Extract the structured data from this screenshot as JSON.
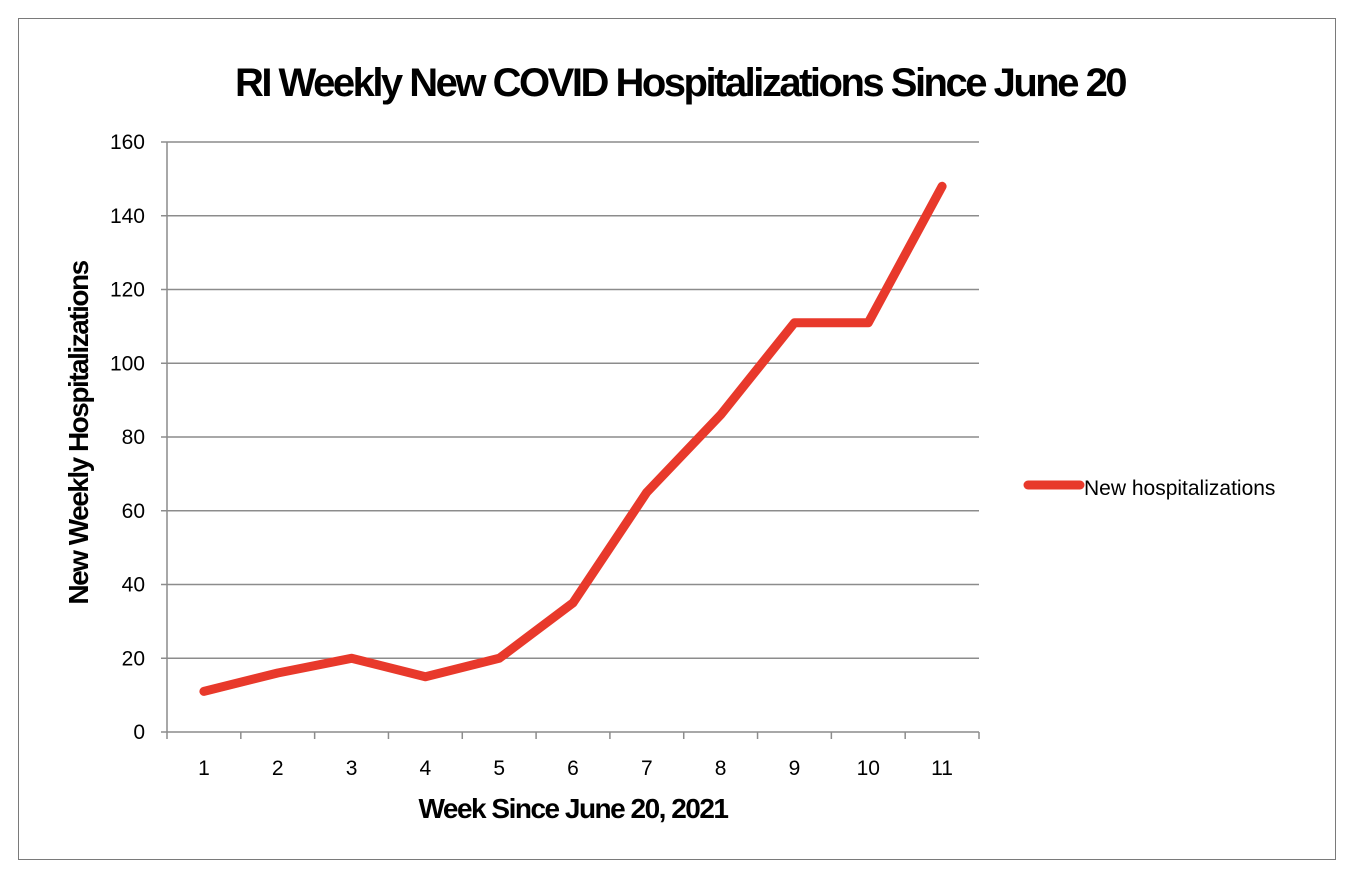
{
  "chart_data": {
    "type": "line",
    "title": "RI Weekly New COVID Hospitalizations Since June 20",
    "xlabel": "Week Since June 20, 2021",
    "ylabel": "New Weekly  Hospitalizations",
    "categories": [
      "1",
      "2",
      "3",
      "4",
      "5",
      "6",
      "7",
      "8",
      "9",
      "10",
      "11"
    ],
    "series": [
      {
        "name": "New hospitalizations",
        "color": "#e8392b",
        "values": [
          11,
          16,
          20,
          15,
          20,
          35,
          65,
          86,
          111,
          111,
          148
        ]
      }
    ],
    "ylim": [
      0,
      160
    ],
    "yticks": [
      0,
      20,
      40,
      60,
      80,
      100,
      120,
      140,
      160
    ],
    "grid": true,
    "legend_position": "right"
  }
}
